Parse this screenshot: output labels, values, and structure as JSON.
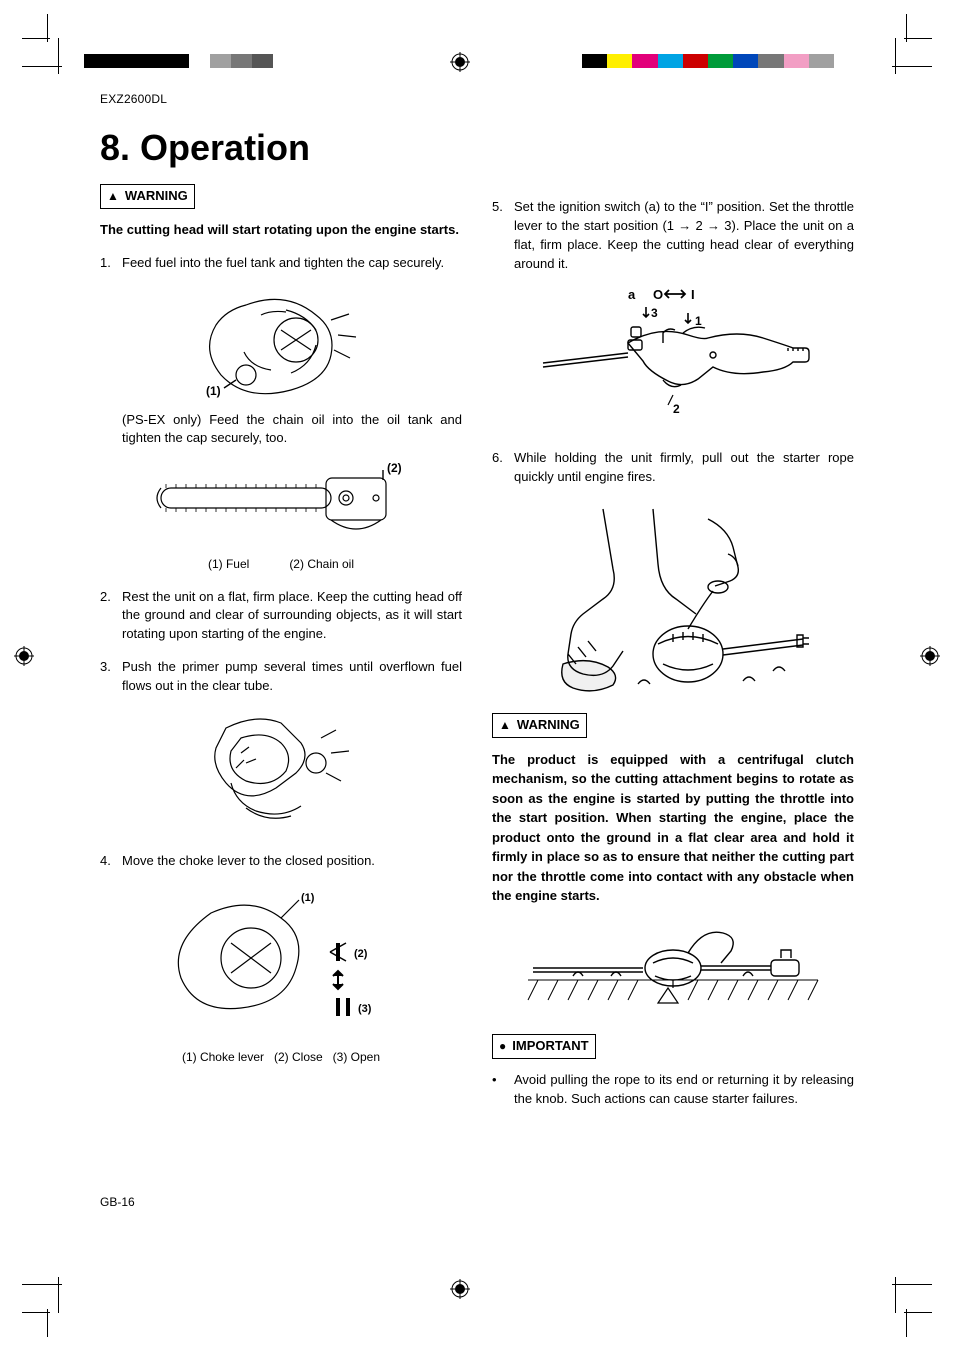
{
  "model": "EXZ2600DL",
  "heading": "8. Operation",
  "footer": "GB-16",
  "warning_label": "WARNING",
  "important_label": "IMPORTANT",
  "intro_bold": "The cutting head will start rotating upon the engine starts.",
  "step1": {
    "num": "1.",
    "text": "Feed fuel into the fuel tank and tighten the cap securely."
  },
  "step1_note": "(PS-EX only) Feed the chain oil into the oil tank and tighten the cap securely, too.",
  "fig1_callout1": "(1)",
  "fig2_callout2": "(2)",
  "fig1_caption_a": "(1) Fuel",
  "fig1_caption_b": "(2) Chain oil",
  "step2": {
    "num": "2.",
    "text": "Rest the unit on a flat, firm place. Keep the cutting head off the ground and clear of surrounding objects, as it will start rotating upon starting of the engine."
  },
  "step3": {
    "num": "3.",
    "text": "Push the primer pump several times until overflown fuel flows out in the clear tube."
  },
  "step4": {
    "num": "4.",
    "text": "Move the choke lever to the closed position."
  },
  "fig4_callout1": "(1)",
  "fig4_callout2": "(2)",
  "fig4_callout3": "(3)",
  "fig4_caption": "(1) Choke lever   (2) Close   (3) Open",
  "step5": {
    "num": "5.",
    "text": "Set the ignition switch (a) to the “I” position. Set the throttle lever to the start position (1 → 2 → 3). Place the unit on a flat, firm place. Keep the cutting head clear of everything around it."
  },
  "fig5_a": "a",
  "fig5_O": "O",
  "fig5_I": "I",
  "fig5_1": "1",
  "fig5_2": "2",
  "fig5_3": "3",
  "step6": {
    "num": "6.",
    "text": "While holding the unit firmly, pull out the starter rope quickly until engine fires."
  },
  "warning2": "The product is equipped with a centrifugal clutch mechanism, so the cutting attachment begins to rotate as soon as the engine is started by putting the throttle into the start position. When starting the engine, place the product onto the ground in a flat clear area and hold it firmly in place so as to ensure that neither the cutting part nor the throttle come into contact with any obstacle when the engine starts.",
  "important_bullet": "Avoid pulling the rope to its end or returning it by releasing the knob. Such actions can cause starter failures.",
  "reg_colors_left": [
    "#000",
    "#000",
    "#000",
    "#000",
    "#000",
    "#fff",
    "#a0a0a0",
    "#777",
    "#555",
    "#fff"
  ],
  "reg_colors_right": [
    "#000",
    "#ffef00",
    "#e2007a",
    "#00a4e4",
    "#c00",
    "#009b3a",
    "#0047ba",
    "#777",
    "#f29ec4",
    "#a0a0a0"
  ]
}
